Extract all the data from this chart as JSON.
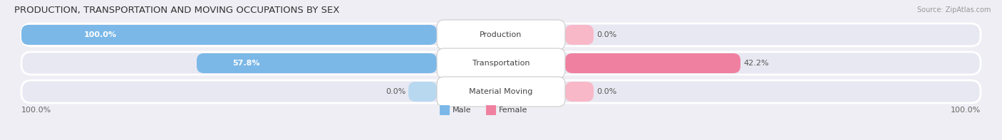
{
  "title": "PRODUCTION, TRANSPORTATION AND MOVING OCCUPATIONS BY SEX",
  "source": "Source: ZipAtlas.com",
  "categories": [
    "Production",
    "Transportation",
    "Material Moving"
  ],
  "male_values": [
    100.0,
    57.8,
    0.0
  ],
  "female_values": [
    0.0,
    42.2,
    0.0
  ],
  "male_color": "#7bb8e8",
  "female_color": "#f080a0",
  "male_light": "#b8d8f0",
  "female_light": "#f8b8c8",
  "bg_color": "#eeeef4",
  "bar_bg": "#e2e2ec",
  "row_bg": "#e8e8f2",
  "title_fontsize": 9.5,
  "source_fontsize": 7,
  "label_fontsize": 8,
  "value_fontsize": 8,
  "axis_label_left": "100.0%",
  "axis_label_right": "100.0%",
  "figsize": [
    14.06,
    1.97
  ],
  "dpi": 100
}
